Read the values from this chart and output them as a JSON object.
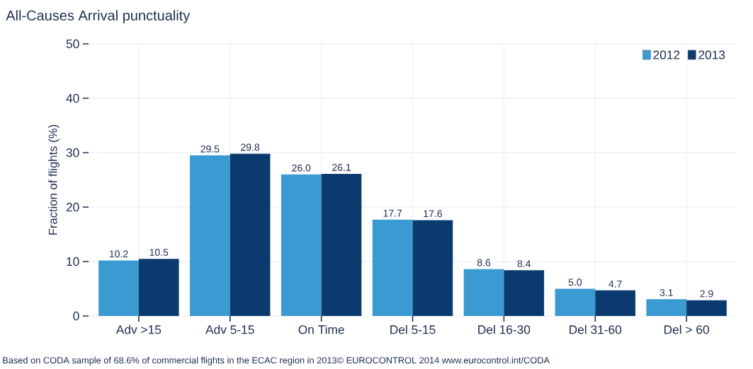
{
  "chart_data": {
    "type": "bar",
    "title": "All-Causes Arrival punctuality",
    "ylabel": "Fraction of flights (%)",
    "categories": [
      "Adv >15",
      "Adv 5-15",
      "On Time",
      "Del 5-15",
      "Del 16-30",
      "Del 31-60",
      "Del > 60"
    ],
    "series": [
      {
        "name": "2012",
        "color": "#3a9ad2",
        "values": [
          10.2,
          29.5,
          26.0,
          17.7,
          8.6,
          5.0,
          3.1
        ],
        "value_labels": [
          "10.2",
          "29.5",
          "26.0",
          "17.7",
          "8.6",
          "5.0",
          "3.1"
        ]
      },
      {
        "name": "2013",
        "color": "#0b3a6e",
        "values": [
          10.5,
          29.8,
          26.1,
          17.6,
          8.4,
          4.7,
          2.9
        ],
        "value_labels": [
          "10.5",
          "29.8",
          "26.1",
          "17.6",
          "8.4",
          "4.7",
          "2.9"
        ]
      }
    ],
    "ylim": [
      0,
      50
    ],
    "yticks": [
      0,
      10,
      20,
      30,
      40,
      50
    ],
    "grid": true,
    "legend": "top right",
    "annotations": [
      "Based on CODA sample of 68.6% of commercial flights in the ECAC region in 2013© EUROCONTROL 2014 www.eurocontrol.int/CODA"
    ]
  }
}
